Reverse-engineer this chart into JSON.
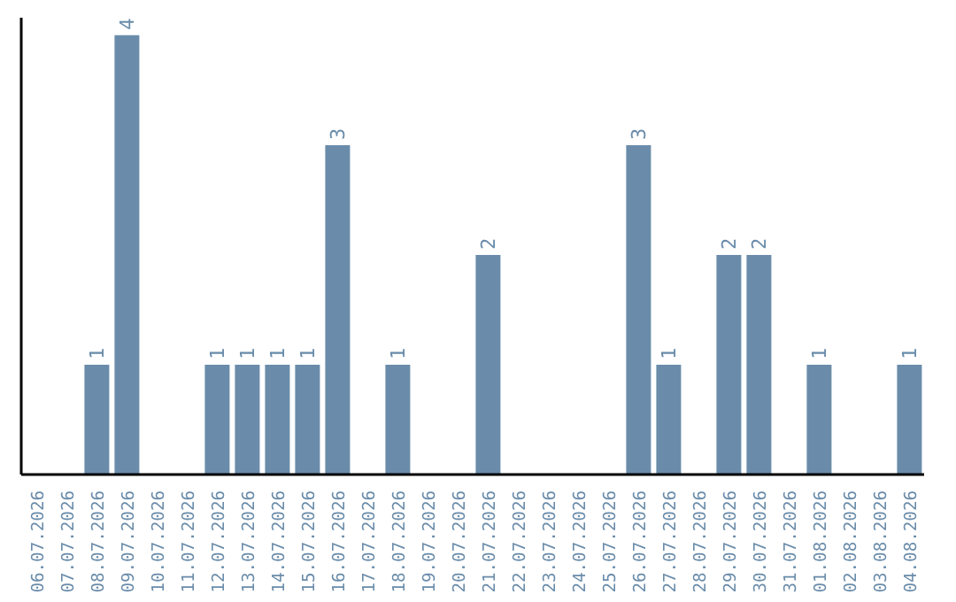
{
  "chart_data": {
    "type": "bar",
    "categories": [
      "06.07.2026",
      "07.07.2026",
      "08.07.2026",
      "09.07.2026",
      "10.07.2026",
      "11.07.2026",
      "12.07.2026",
      "13.07.2026",
      "14.07.2026",
      "15.07.2026",
      "16.07.2026",
      "17.07.2026",
      "18.07.2026",
      "19.07.2026",
      "20.07.2026",
      "21.07.2026",
      "22.07.2026",
      "23.07.2026",
      "24.07.2026",
      "25.07.2026",
      "26.07.2026",
      "27.07.2026",
      "28.07.2026",
      "29.07.2026",
      "30.07.2026",
      "31.07.2026",
      "01.08.2026",
      "02.08.2026",
      "03.08.2026",
      "04.08.2026"
    ],
    "values": [
      0,
      0,
      1,
      4,
      0,
      0,
      1,
      1,
      1,
      1,
      3,
      0,
      1,
      0,
      0,
      2,
      0,
      0,
      0,
      0,
      3,
      1,
      0,
      2,
      2,
      0,
      1,
      0,
      0,
      1
    ],
    "value_labels": [
      null,
      null,
      "1",
      "4",
      null,
      null,
      "1",
      "1",
      "1",
      "1",
      "3",
      null,
      "1",
      null,
      null,
      "2",
      null,
      null,
      null,
      null,
      "3",
      "1",
      null,
      "2",
      "2",
      null,
      "1",
      null,
      null,
      "1"
    ],
    "color": "#6a8caa",
    "relative": false,
    "grid": false,
    "legend": false
  }
}
